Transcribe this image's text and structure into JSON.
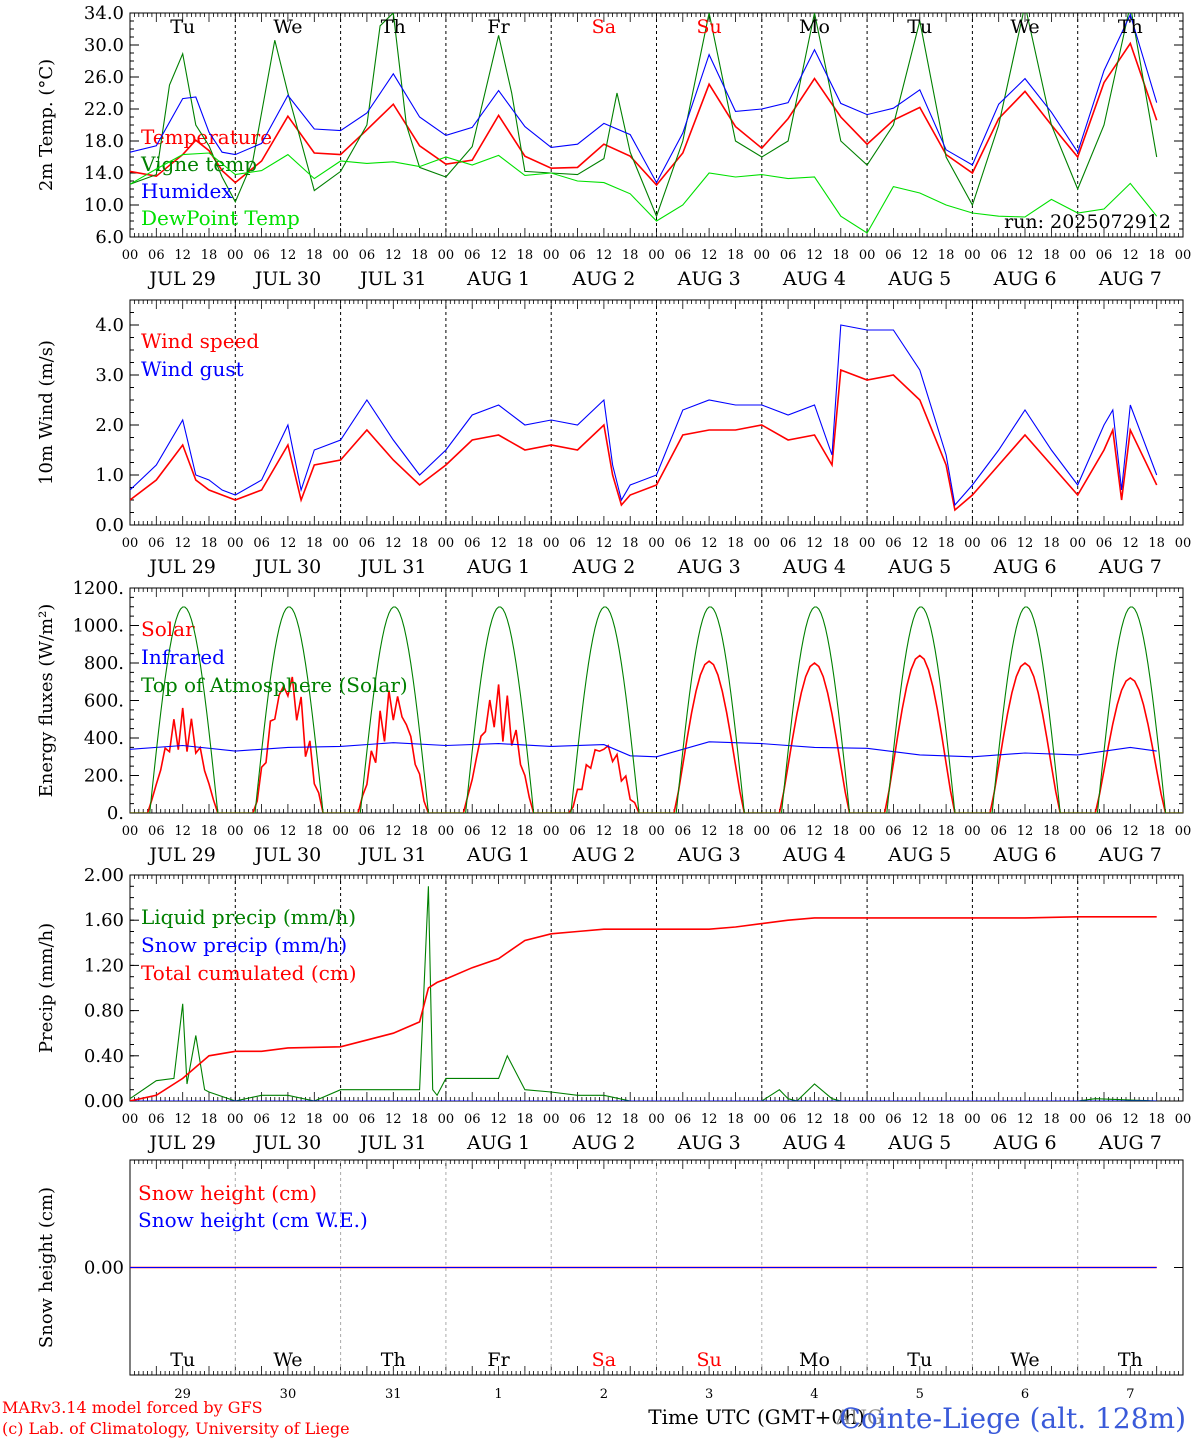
{
  "x_axis": {
    "hour_labels": [
      "00",
      "06",
      "12",
      "18"
    ],
    "date_labels": [
      "JUL 29",
      "JUL 30",
      "JUL 31",
      "AUG  1",
      "AUG  2",
      "AUG  3",
      "AUG  4",
      "AUG  5",
      "AUG  6",
      "AUG  7"
    ],
    "weekdays": [
      {
        "label": "Tu",
        "color": "#000000"
      },
      {
        "label": "We",
        "color": "#000000"
      },
      {
        "label": "Th",
        "color": "#000000"
      },
      {
        "label": "Fr",
        "color": "#000000"
      },
      {
        "label": "Sa",
        "color": "#ff0000"
      },
      {
        "label": "Su",
        "color": "#ff0000"
      },
      {
        "label": "Mo",
        "color": "#000000"
      },
      {
        "label": "Tu",
        "color": "#000000"
      },
      {
        "label": "We",
        "color": "#000000"
      },
      {
        "label": "Th",
        "color": "#000000"
      }
    ],
    "day_numbers": [
      "29",
      "30",
      "31",
      "1",
      "2",
      "3",
      "4",
      "5",
      "6",
      "7"
    ],
    "month_label": "AUG",
    "time_label": "Time UTC (GMT+0h)"
  },
  "footer": {
    "model_line": "MARv3.14 model forced by GFS",
    "credit_line": "(c) Lab. of Climatology, University of Liege",
    "station": "Cointe-Liege (alt. 128m)"
  },
  "colors": {
    "red": "#ff0000",
    "green": "#008000",
    "blue": "#0000ff",
    "lime": "#00e000"
  },
  "chart_data": [
    {
      "type": "line",
      "id": "temperature",
      "ylabel": "2m Temp. (°C)",
      "ylim": [
        6,
        34
      ],
      "yticks": [
        "6.0",
        "10.0",
        "14.0",
        "18.0",
        "22.0",
        "26.0",
        "30.0",
        "34.0"
      ],
      "ytick_values": [
        6,
        10,
        14,
        18,
        22,
        26,
        30,
        34
      ],
      "annotation": "run: 2025072912",
      "x_unit": "hours since 29 Jul 00 UTC",
      "series": [
        {
          "name": "Temperature",
          "color": "#ff0000",
          "x": [
            0,
            6,
            12,
            15,
            18,
            21,
            24,
            30,
            36,
            42,
            48,
            54,
            60,
            66,
            72,
            78,
            84,
            90,
            96,
            102,
            108,
            114,
            120,
            126,
            132,
            138,
            144,
            150,
            156,
            162,
            168,
            174,
            180,
            186,
            192,
            198,
            204,
            210,
            216,
            222,
            228,
            234
          ],
          "values": [
            14.2,
            13.6,
            16.3,
            18.1,
            16.8,
            14.3,
            12.8,
            15.5,
            21.1,
            16.5,
            16.3,
            19.4,
            22.6,
            17.4,
            15.1,
            15.6,
            21.2,
            16.1,
            14.6,
            14.7,
            17.6,
            16.1,
            12.5,
            16.5,
            25.1,
            19.8,
            17.1,
            20.8,
            25.8,
            21.0,
            17.6,
            20.6,
            22.2,
            16.3,
            14.0,
            20.8,
            24.2,
            20.0,
            16.0,
            25.3,
            30.2,
            20.6
          ]
        },
        {
          "name": "Vigne temp",
          "color": "#008000",
          "x": [
            0,
            6,
            9,
            12,
            15,
            18,
            21,
            24,
            28,
            33,
            36,
            42,
            48,
            54,
            57,
            60,
            63,
            66,
            72,
            78,
            84,
            87,
            90,
            96,
            102,
            108,
            111,
            114,
            120,
            126,
            132,
            138,
            144,
            150,
            156,
            162,
            168,
            174,
            180,
            186,
            192,
            198,
            204,
            210,
            216,
            222,
            228,
            234
          ],
          "values": [
            12.6,
            13.8,
            25.0,
            28.9,
            20.0,
            17.4,
            13.5,
            10.4,
            15.5,
            30.6,
            24.0,
            11.8,
            14.2,
            20.0,
            32.4,
            34.0,
            20.0,
            14.7,
            13.5,
            17.3,
            31.2,
            24.0,
            14.2,
            14.0,
            13.8,
            15.8,
            24.0,
            16.6,
            8.6,
            18.0,
            34.0,
            18.0,
            16.0,
            18.0,
            34.0,
            18.0,
            15.0,
            20.0,
            33.0,
            16.0,
            10.0,
            20.0,
            35.0,
            20.0,
            12.0,
            20.0,
            35.0,
            16.0
          ]
        },
        {
          "name": "Humidex",
          "color": "#0000ff",
          "x": [
            0,
            6,
            12,
            15,
            18,
            21,
            24,
            30,
            36,
            42,
            48,
            54,
            60,
            66,
            72,
            78,
            84,
            90,
            96,
            102,
            108,
            114,
            120,
            126,
            132,
            138,
            144,
            150,
            156,
            162,
            168,
            174,
            180,
            186,
            192,
            198,
            204,
            210,
            216,
            222,
            228,
            234
          ],
          "values": [
            16.6,
            17.4,
            23.3,
            23.5,
            19.1,
            16.6,
            16.3,
            17.7,
            23.7,
            19.5,
            19.3,
            21.5,
            26.4,
            21.0,
            18.7,
            19.7,
            24.3,
            19.8,
            17.2,
            17.6,
            20.2,
            18.8,
            12.8,
            19.0,
            28.8,
            21.7,
            22.0,
            22.8,
            29.4,
            22.7,
            21.3,
            22.1,
            24.4,
            16.9,
            15.0,
            22.6,
            25.8,
            21.6,
            16.6,
            26.8,
            33.8,
            22.8
          ]
        },
        {
          "name": "DewPoint Temp",
          "color": "#00e000",
          "x": [
            0,
            6,
            12,
            18,
            24,
            30,
            36,
            42,
            48,
            54,
            60,
            66,
            72,
            78,
            84,
            90,
            96,
            102,
            108,
            114,
            120,
            126,
            132,
            138,
            144,
            150,
            156,
            162,
            168,
            174,
            180,
            186,
            192,
            198,
            204,
            210,
            216,
            222,
            228,
            234
          ],
          "values": [
            12.6,
            14.5,
            16.3,
            16.5,
            13.8,
            14.3,
            16.3,
            13.3,
            15.5,
            15.2,
            15.4,
            14.8,
            16.0,
            15.0,
            16.2,
            13.7,
            14.0,
            13.0,
            12.8,
            11.4,
            8.0,
            10.0,
            14.0,
            13.5,
            13.8,
            13.3,
            13.5,
            8.6,
            6.5,
            12.3,
            11.5,
            10.0,
            9.0,
            8.6,
            8.5,
            10.7,
            9.0,
            9.5,
            12.7,
            8.6
          ]
        }
      ]
    },
    {
      "type": "line",
      "id": "wind",
      "ylabel": "10m Wind (m/s)",
      "ylim": [
        0,
        4.5
      ],
      "yticks": [
        "0.0",
        "1.0",
        "2.0",
        "3.0",
        "4.0"
      ],
      "ytick_values": [
        0,
        1,
        2,
        3,
        4
      ],
      "x_unit": "hours since 29 Jul 00 UTC",
      "series": [
        {
          "name": "Wind speed",
          "color": "#ff0000",
          "x": [
            0,
            6,
            12,
            15,
            18,
            21,
            24,
            30,
            36,
            39,
            42,
            48,
            54,
            60,
            66,
            72,
            78,
            84,
            90,
            96,
            102,
            108,
            110,
            112,
            114,
            120,
            126,
            132,
            138,
            144,
            150,
            156,
            160,
            162,
            168,
            174,
            180,
            186,
            188,
            192,
            198,
            204,
            210,
            216,
            222,
            224,
            226,
            228,
            234
          ],
          "values": [
            0.5,
            0.9,
            1.6,
            0.9,
            0.7,
            0.6,
            0.5,
            0.7,
            1.6,
            0.5,
            1.2,
            1.3,
            1.9,
            1.3,
            0.8,
            1.2,
            1.7,
            1.8,
            1.5,
            1.6,
            1.5,
            2.0,
            1.0,
            0.4,
            0.6,
            0.8,
            1.8,
            1.9,
            1.9,
            2.0,
            1.7,
            1.8,
            1.2,
            3.1,
            2.9,
            3.0,
            2.5,
            1.2,
            0.3,
            0.6,
            1.2,
            1.8,
            1.2,
            0.6,
            1.5,
            1.9,
            0.5,
            1.9,
            0.8
          ]
        },
        {
          "name": "Wind gust",
          "color": "#0000ff",
          "x": [
            0,
            6,
            12,
            15,
            18,
            21,
            24,
            30,
            36,
            39,
            42,
            48,
            54,
            60,
            66,
            72,
            78,
            84,
            90,
            96,
            102,
            108,
            110,
            112,
            114,
            120,
            126,
            132,
            138,
            144,
            150,
            156,
            160,
            162,
            168,
            174,
            180,
            186,
            188,
            192,
            198,
            204,
            210,
            216,
            222,
            224,
            226,
            228,
            234
          ],
          "values": [
            0.7,
            1.2,
            2.1,
            1.0,
            0.9,
            0.7,
            0.6,
            0.9,
            2.0,
            0.7,
            1.5,
            1.7,
            2.5,
            1.7,
            1.0,
            1.5,
            2.2,
            2.4,
            2.0,
            2.1,
            2.0,
            2.5,
            1.2,
            0.5,
            0.8,
            1.0,
            2.3,
            2.5,
            2.4,
            2.4,
            2.2,
            2.4,
            1.4,
            4.0,
            3.9,
            3.9,
            3.1,
            1.4,
            0.4,
            0.8,
            1.5,
            2.3,
            1.5,
            0.8,
            2.0,
            2.3,
            0.7,
            2.4,
            1.0
          ]
        }
      ]
    },
    {
      "type": "line",
      "id": "energy",
      "ylabel": "Energy fluxes (W/m²)",
      "ylim": [
        0,
        1200
      ],
      "yticks": [
        "0.",
        "200.",
        "400.",
        "600.",
        "800.",
        "1000.",
        "1200."
      ],
      "ytick_values": [
        0,
        200,
        400,
        600,
        800,
        1000,
        1200
      ],
      "x_unit": "hours since 29 Jul 00 UTC",
      "series": [
        {
          "name": "Solar",
          "color": "#ff0000",
          "day_peaks": [
            560,
            780,
            680,
            690,
            400,
            810,
            800,
            840,
            800,
            720
          ]
        },
        {
          "name": "Infrared",
          "color": "#0000ff",
          "x": [
            0,
            12,
            24,
            36,
            48,
            60,
            72,
            84,
            96,
            108,
            114,
            120,
            132,
            144,
            156,
            168,
            180,
            192,
            204,
            216,
            228,
            234
          ],
          "values": [
            340,
            360,
            330,
            350,
            355,
            375,
            360,
            370,
            355,
            365,
            305,
            300,
            380,
            370,
            350,
            345,
            310,
            300,
            320,
            310,
            350,
            330
          ]
        },
        {
          "name": "Top of Atmosphere (Solar)",
          "color": "#008000",
          "day_peak": 1100
        }
      ]
    },
    {
      "type": "line",
      "id": "precip",
      "ylabel": "Precip (mm/h)",
      "ylim": [
        0,
        2.0
      ],
      "yticks": [
        "0.00",
        "0.40",
        "0.80",
        "1.20",
        "1.60",
        "2.00"
      ],
      "ytick_values": [
        0,
        0.4,
        0.8,
        1.2,
        1.6,
        2.0
      ],
      "x_unit": "hours since 29 Jul 00 UTC",
      "series": [
        {
          "name": "Liquid precip (mm/h)",
          "color": "#008000",
          "x": [
            0,
            6,
            10,
            12,
            13,
            15,
            17,
            18,
            24,
            30,
            36,
            42,
            48,
            54,
            60,
            66,
            68,
            69,
            70,
            72,
            78,
            84,
            86,
            90,
            96,
            102,
            108,
            114,
            144,
            148,
            150,
            152,
            156,
            160,
            162,
            168,
            216,
            220,
            234
          ],
          "values": [
            0.02,
            0.18,
            0.2,
            0.86,
            0.15,
            0.58,
            0.1,
            0.08,
            0,
            0.05,
            0.05,
            0,
            0.1,
            0.1,
            0.1,
            0.1,
            1.9,
            0.1,
            0.05,
            0.2,
            0.2,
            0.2,
            0.4,
            0.1,
            0.08,
            0.05,
            0.05,
            0,
            0,
            0.1,
            0.02,
            0,
            0.15,
            0.02,
            0,
            0,
            0,
            0.02,
            0
          ]
        },
        {
          "name": "Snow precip (mm/h)",
          "color": "#0000ff",
          "x": [
            0,
            234
          ],
          "values": [
            0,
            0
          ]
        },
        {
          "name": "Total cumulated (cm)",
          "color": "#ff0000",
          "x": [
            0,
            6,
            12,
            18,
            24,
            30,
            36,
            48,
            60,
            66,
            68,
            70,
            72,
            78,
            84,
            90,
            96,
            102,
            108,
            114,
            120,
            126,
            132,
            138,
            144,
            150,
            156,
            162,
            168,
            180,
            192,
            204,
            216,
            234
          ],
          "values": [
            0,
            0.05,
            0.2,
            0.4,
            0.44,
            0.44,
            0.47,
            0.48,
            0.6,
            0.7,
            1.0,
            1.05,
            1.08,
            1.18,
            1.26,
            1.42,
            1.48,
            1.5,
            1.52,
            1.52,
            1.52,
            1.52,
            1.52,
            1.54,
            1.57,
            1.6,
            1.62,
            1.62,
            1.62,
            1.62,
            1.62,
            1.62,
            1.63,
            1.63
          ]
        }
      ]
    },
    {
      "type": "line",
      "id": "snow",
      "ylabel": "Snow height (cm)",
      "ylim": [
        -1,
        1
      ],
      "yticks": [
        "0.00"
      ],
      "ytick_values": [
        0
      ],
      "x_unit": "hours since 29 Jul 00 UTC",
      "series": [
        {
          "name": "Snow height (cm)",
          "color": "#ff0000",
          "x": [
            0,
            234
          ],
          "values": [
            0,
            0
          ]
        },
        {
          "name": "Snow height (cm W.E.)",
          "color": "#0000ff",
          "x": [
            0,
            234
          ],
          "values": [
            0,
            0
          ]
        }
      ]
    }
  ]
}
